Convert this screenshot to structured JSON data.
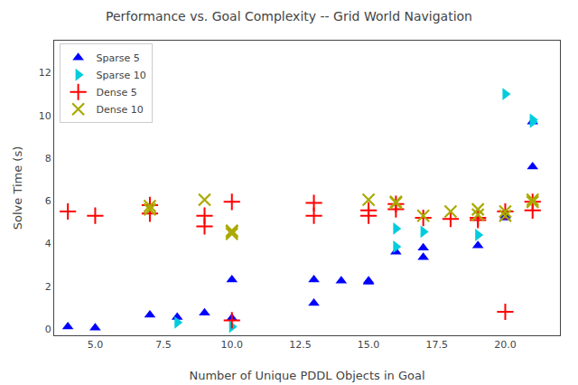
{
  "chart_data": {
    "type": "scatter",
    "title": "Performance vs. Goal Complexity -- Grid World Navigation",
    "xlabel": "Number of Unique PDDL Objects in Goal",
    "ylabel": "Solve Time (s)",
    "series": [
      {
        "name": "Sparse 5",
        "color": "#0000ff",
        "marker": "triangle-up",
        "x": [
          4,
          5,
          7,
          8,
          9,
          10,
          10,
          13,
          13,
          14,
          15,
          15,
          16,
          17,
          17,
          19,
          20,
          20,
          21,
          21
        ],
        "values": [
          0.1,
          0.05,
          0.65,
          0.55,
          0.75,
          2.3,
          0.5,
          1.2,
          2.3,
          2.25,
          2.25,
          2.2,
          3.6,
          3.8,
          3.35,
          3.9,
          5.2,
          5.3,
          7.6,
          9.7
        ]
      },
      {
        "name": "Sparse 10",
        "color": "#00ccdd",
        "marker": "triangle-right",
        "x": [
          8,
          10,
          16,
          16,
          17,
          19,
          20,
          21,
          21
        ],
        "values": [
          0.3,
          0.1,
          4.7,
          3.85,
          4.55,
          4.4,
          11.0,
          9.8,
          9.7
        ]
      },
      {
        "name": "Dense 5",
        "color": "#ff0000",
        "marker": "plus",
        "x": [
          4,
          5,
          7,
          7,
          9,
          9,
          10,
          10,
          13,
          13,
          15,
          15,
          16,
          16,
          17,
          18,
          19,
          19,
          20,
          20,
          21,
          21
        ],
        "values": [
          5.5,
          5.3,
          5.4,
          5.8,
          4.8,
          5.3,
          5.95,
          0.4,
          5.3,
          5.9,
          5.3,
          5.55,
          5.85,
          5.6,
          5.2,
          5.15,
          5.2,
          5.1,
          5.5,
          0.8,
          5.95,
          5.55
        ]
      },
      {
        "name": "Dense 10",
        "color": "#aaaa00",
        "marker": "x",
        "x": [
          7,
          7,
          9,
          10,
          10,
          10,
          15,
          16,
          16,
          17,
          18,
          19,
          19,
          20,
          20,
          21,
          21
        ],
        "values": [
          5.6,
          5.75,
          6.05,
          4.6,
          4.55,
          4.45,
          6.05,
          5.95,
          5.9,
          5.3,
          5.5,
          5.6,
          5.35,
          5.5,
          5.3,
          6.05,
          5.95
        ]
      }
    ],
    "xlim": [
      3.5,
      22
    ],
    "ylim": [
      -0.3,
      13.5
    ],
    "xticks": [
      {
        "value": 5,
        "label": "5.0"
      },
      7.5,
      {
        "value": 10,
        "label": "10.0"
      },
      12.5,
      {
        "value": 15,
        "label": "15.0"
      },
      17.5,
      {
        "value": 20,
        "label": "20.0"
      }
    ],
    "yticks": [
      0,
      2,
      4,
      6,
      8,
      10,
      12
    ],
    "legend": "upper left",
    "grid": false
  }
}
